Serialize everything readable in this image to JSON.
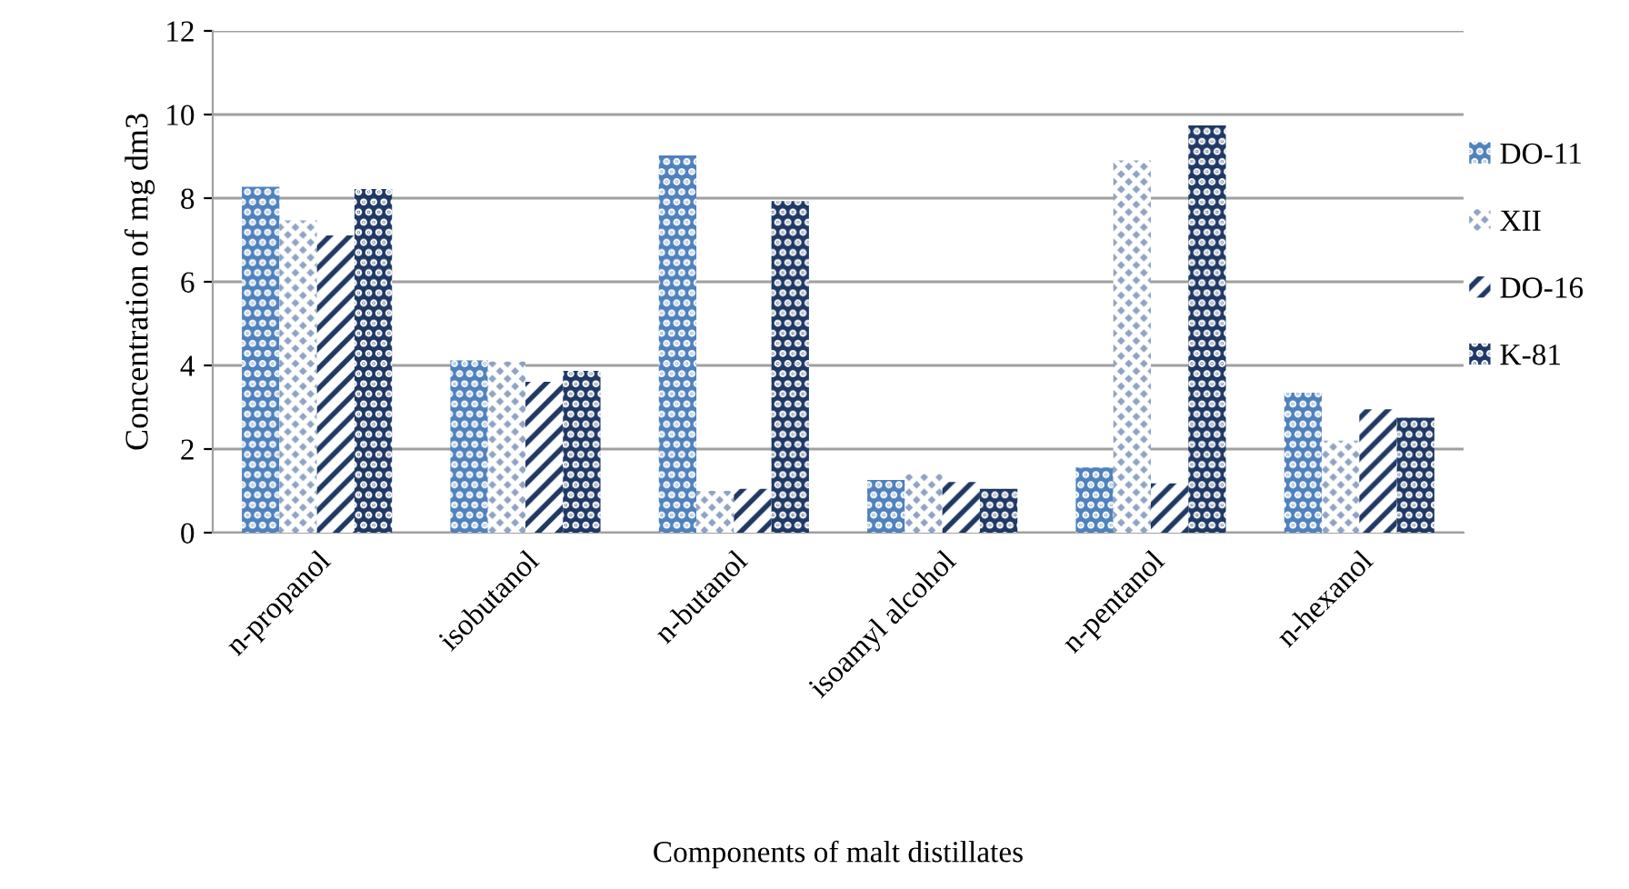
{
  "chart_data": {
    "type": "bar",
    "xlabel": "Components of malt distillates",
    "ylabel": "Concentration of mg dm3",
    "categories": [
      "n-propanol",
      "isobutanol",
      "n-butanol",
      "isoamyl alcohol",
      "n-pentanol",
      "n-hexanol"
    ],
    "series": [
      {
        "name": "DO-11",
        "color": "#4f81bd",
        "values": [
          8.27,
          4.12,
          9.02,
          1.26,
          1.56,
          3.35
        ]
      },
      {
        "name": "XII",
        "color": "#8fa3c4",
        "values": [
          7.47,
          4.09,
          1.0,
          1.4,
          8.9,
          2.2
        ]
      },
      {
        "name": "DO-16",
        "color": "#1f3864",
        "values": [
          7.11,
          3.61,
          1.05,
          1.21,
          1.18,
          2.95
        ]
      },
      {
        "name": "K-81",
        "color": "#1f3864",
        "values": [
          8.22,
          3.87,
          7.93,
          1.05,
          9.74,
          2.75
        ]
      }
    ],
    "ylim": [
      0,
      12
    ],
    "yticks": [
      0,
      2,
      4,
      6,
      8,
      10,
      12
    ],
    "grid": "y",
    "legend": "right"
  }
}
